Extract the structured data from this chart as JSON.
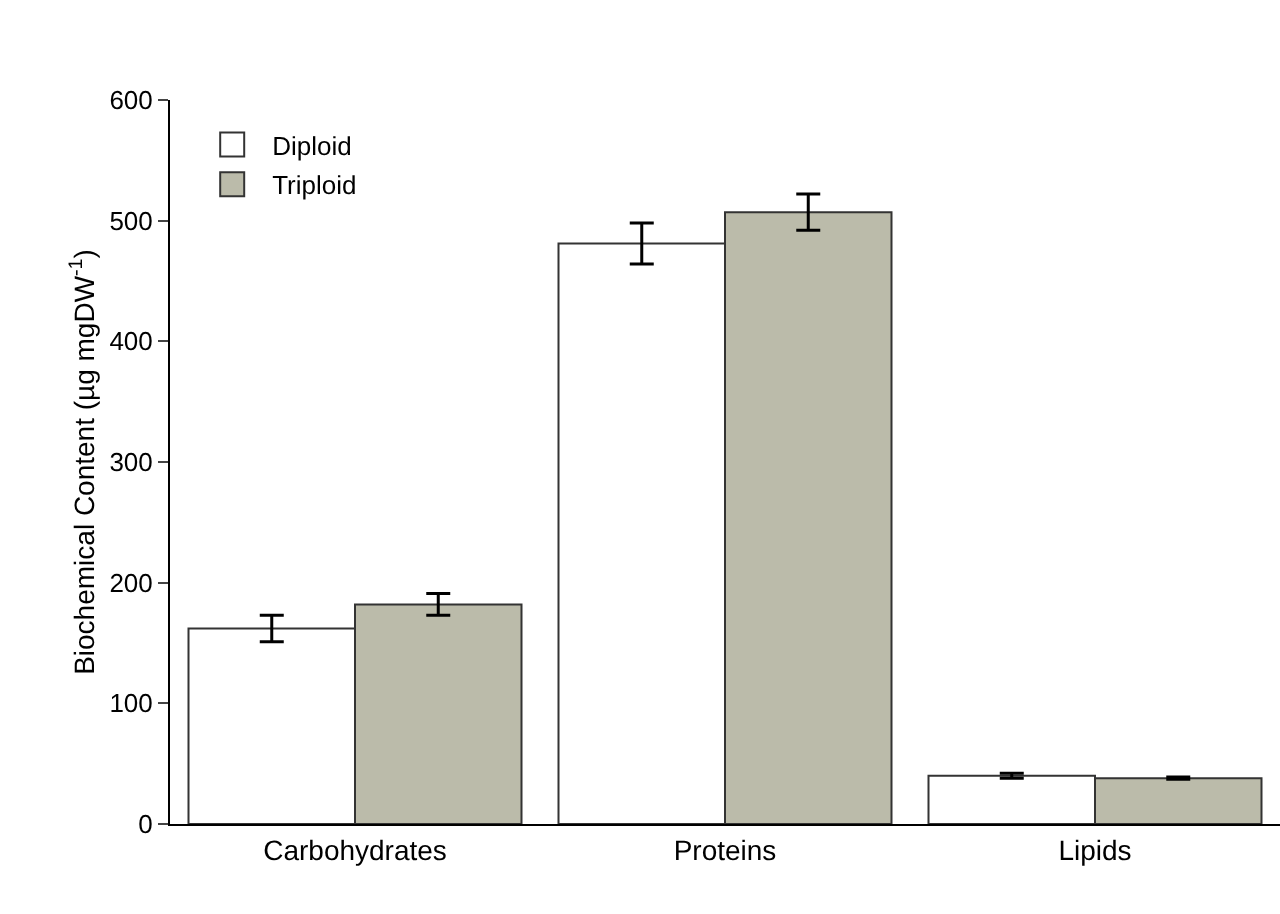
{
  "chart_data": {
    "type": "bar",
    "ylabel": "Biochemical Content (µg mgDW$^{-1}$)",
    "categories": [
      "Carbohydrates",
      "Proteins",
      "Lipids"
    ],
    "series": [
      {
        "name": "Diploid",
        "color": "#ffffff",
        "values": [
          162,
          481,
          40
        ],
        "errors": [
          11,
          17,
          2
        ]
      },
      {
        "name": "Triploid",
        "color": "#bbbbaa",
        "values": [
          182,
          507,
          38
        ],
        "errors": [
          9,
          15,
          1
        ]
      }
    ],
    "ylim": [
      0,
      600
    ],
    "yticks": [
      0,
      100,
      200,
      300,
      400,
      500,
      600
    ],
    "grid": false,
    "legend": "top left"
  }
}
